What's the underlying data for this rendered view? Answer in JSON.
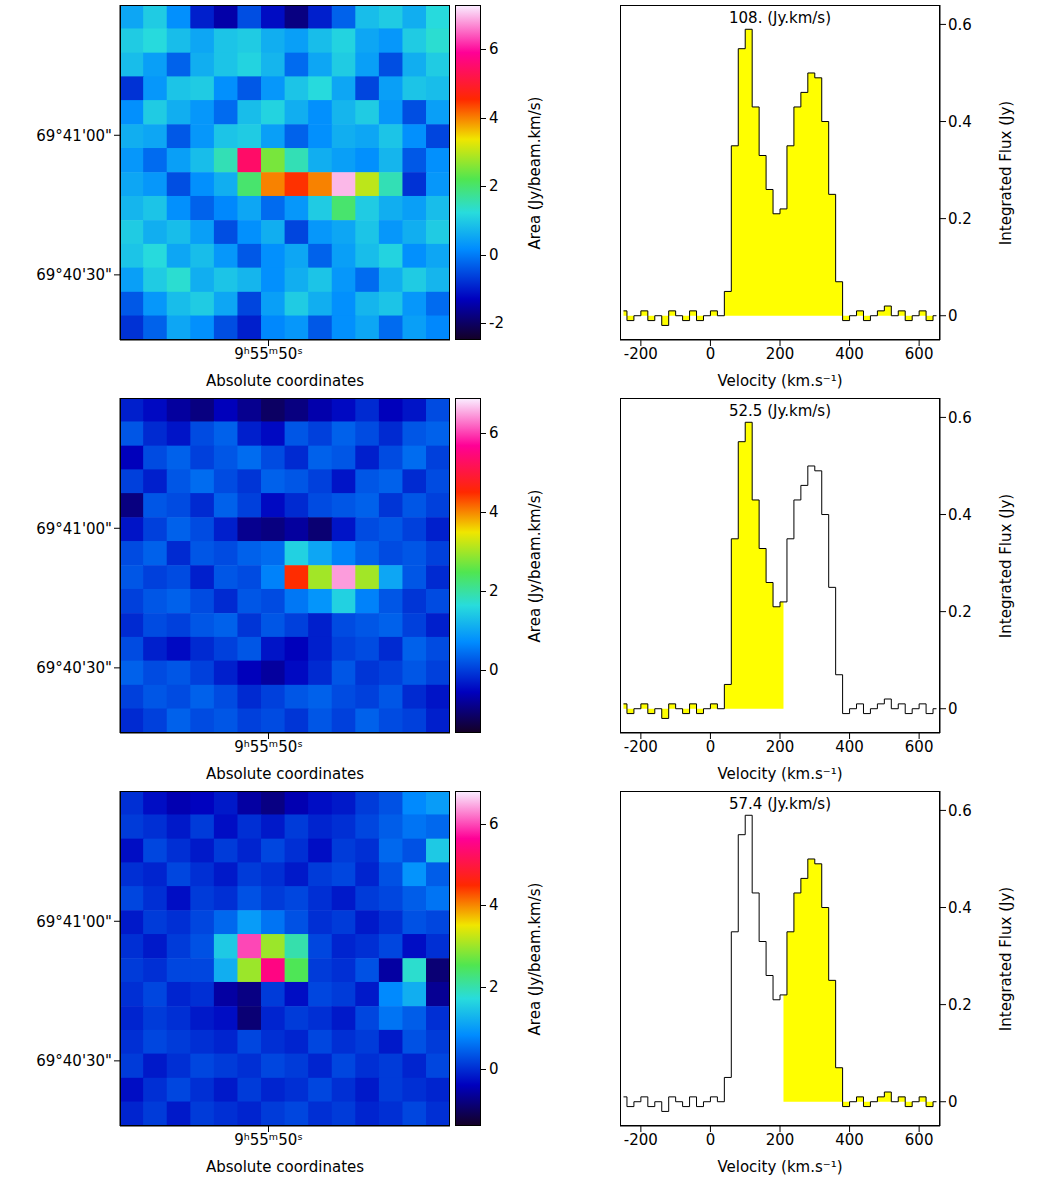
{
  "chart_data": [
    {
      "type": "heatmap",
      "xlabel": "Absolute coordinates",
      "xlim": [
        56.3,
        42.3
      ],
      "xticks": [
        {
          "value": 50,
          "label": "9ʰ55ᵐ50ˢ"
        }
      ],
      "ylim": [
        16,
        88
      ],
      "yticks": [
        {
          "value": 60,
          "label": "69°41'00\""
        },
        {
          "value": 30,
          "label": "69°40'30\""
        }
      ],
      "x": [
        55.8,
        54.8,
        53.8,
        52.8,
        51.8,
        50.8,
        49.8,
        48.8,
        47.8,
        46.8,
        45.8,
        44.8,
        43.8,
        42.8
      ],
      "y": [
        85.4,
        80.3,
        75.1,
        70.0,
        64.9,
        59.7,
        54.6,
        49.4,
        44.3,
        39.1,
        34.0,
        28.9,
        23.7,
        18.6
      ],
      "cells": [
        [
          0.5,
          1.0,
          0.2,
          -1.0,
          -1.5,
          -0.5,
          -1.2,
          -1.8,
          -1.0,
          -0.3,
          0.8,
          1.0,
          0.6,
          1.2
        ],
        [
          1.0,
          1.2,
          0.8,
          0.5,
          0.9,
          1.0,
          0.6,
          0.4,
          0.8,
          1.1,
          0.5,
          0.3,
          1.0,
          1.3
        ],
        [
          0.8,
          0.4,
          -0.3,
          0.6,
          0.9,
          1.1,
          0.7,
          -0.2,
          0.5,
          1.0,
          0.4,
          -0.5,
          0.6,
          1.0
        ],
        [
          -0.8,
          0.3,
          0.9,
          1.0,
          0.2,
          -0.4,
          0.3,
          0.9,
          1.2,
          0.5,
          -0.6,
          0.4,
          0.9,
          0.8
        ],
        [
          0.2,
          1.0,
          0.6,
          0.3,
          -0.2,
          0.8,
          1.1,
          0.6,
          0.2,
          0.7,
          1.0,
          0.3,
          -0.5,
          0.4
        ],
        [
          0.6,
          0.5,
          -0.4,
          0.3,
          0.9,
          1.0,
          0.4,
          -0.3,
          0.2,
          0.6,
          0.5,
          0.9,
          0.2,
          -0.6
        ],
        [
          0.3,
          -0.2,
          0.4,
          0.8,
          1.5,
          5.5,
          2.5,
          1.5,
          0.6,
          0.4,
          0.2,
          0.7,
          -0.4,
          0.2
        ],
        [
          0.5,
          0.3,
          -0.5,
          0.2,
          0.6,
          2.0,
          4.0,
          4.5,
          4.0,
          7.0,
          3.0,
          1.5,
          -0.8,
          0.3
        ],
        [
          0.7,
          0.9,
          0.2,
          -0.3,
          0.1,
          0.5,
          -0.2,
          0.3,
          1.0,
          2.0,
          1.0,
          0.6,
          0.4,
          0.8
        ],
        [
          1.0,
          0.6,
          0.8,
          0.4,
          -0.5,
          0.2,
          0.6,
          -0.6,
          0.3,
          0.5,
          0.9,
          0.3,
          0.6,
          1.0
        ],
        [
          0.9,
          1.2,
          0.5,
          0.8,
          0.3,
          -0.4,
          0.2,
          0.5,
          -0.3,
          0.4,
          0.8,
          1.1,
          0.2,
          0.5
        ],
        [
          0.4,
          1.0,
          1.3,
          0.6,
          0.9,
          0.7,
          0.2,
          0.6,
          0.9,
          0.3,
          -0.2,
          0.6,
          1.0,
          0.7
        ],
        [
          -0.4,
          0.3,
          0.8,
          1.0,
          0.5,
          -0.6,
          0.4,
          1.0,
          0.6,
          0.2,
          0.7,
          0.9,
          0.3,
          -0.2
        ],
        [
          -0.8,
          -0.3,
          0.5,
          0.2,
          -0.5,
          -1.0,
          0.1,
          0.3,
          -0.4,
          0.2,
          0.5,
          -0.2,
          0.4,
          0.1
        ]
      ],
      "colorbar": {
        "label": "Area (Jy/beam.km/s)",
        "range": [
          -2.5,
          7.3
        ],
        "ticks": [
          -2,
          0,
          2,
          4,
          6
        ]
      }
    },
    {
      "type": "area",
      "title": "108. (Jy.km/s)",
      "xlabel": "Velocity (km.s⁻¹)",
      "ylabel": "Integrated Flux (Jy)",
      "line_style": "step",
      "color": "#ffff00",
      "xlim": [
        -260,
        660
      ],
      "xticks": [
        -200,
        0,
        200,
        400,
        600
      ],
      "ylim": [
        -0.05,
        0.64
      ],
      "yticks": [
        0,
        0.2,
        0.4,
        0.6
      ],
      "x": [
        -250,
        -230,
        -210,
        -190,
        -170,
        -150,
        -130,
        -110,
        -90,
        -70,
        -50,
        -30,
        -10,
        10,
        30,
        50,
        70,
        90,
        110,
        130,
        150,
        170,
        190,
        210,
        230,
        250,
        270,
        290,
        310,
        330,
        350,
        370,
        390,
        410,
        430,
        450,
        470,
        490,
        510,
        530,
        550,
        570,
        590,
        610,
        630,
        650
      ],
      "values": [
        0.01,
        -0.01,
        0.0,
        0.01,
        -0.01,
        0.0,
        -0.02,
        0.01,
        0.0,
        -0.01,
        0.01,
        -0.01,
        0.0,
        0.01,
        0.0,
        0.05,
        0.35,
        0.55,
        0.59,
        0.43,
        0.33,
        0.26,
        0.21,
        0.22,
        0.35,
        0.43,
        0.46,
        0.5,
        0.49,
        0.4,
        0.25,
        0.07,
        -0.01,
        0.0,
        0.01,
        -0.01,
        0.0,
        0.01,
        0.02,
        0.0,
        0.01,
        -0.01,
        0.0,
        0.01,
        -0.01,
        0.0
      ],
      "integration_window": [
        -250,
        650
      ]
    },
    {
      "type": "heatmap",
      "xlabel": "Absolute coordinates",
      "xlim": [
        56.3,
        42.3
      ],
      "xticks": [
        {
          "value": 50,
          "label": "9ʰ55ᵐ50ˢ"
        }
      ],
      "ylim": [
        16,
        88
      ],
      "yticks": [
        {
          "value": 60,
          "label": "69°41'00\""
        },
        {
          "value": 30,
          "label": "69°40'30\""
        }
      ],
      "x": [
        55.8,
        54.8,
        53.8,
        52.8,
        51.8,
        50.8,
        49.8,
        48.8,
        47.8,
        46.8,
        45.8,
        44.8,
        43.8,
        42.8
      ],
      "y": [
        85.4,
        80.3,
        75.1,
        70.0,
        64.9,
        59.7,
        54.6,
        49.4,
        44.3,
        39.1,
        34.0,
        28.9,
        23.7,
        18.6
      ],
      "cells": [
        [
          -0.3,
          -0.5,
          -0.8,
          -1.0,
          -0.6,
          -0.9,
          -1.2,
          -1.0,
          -0.7,
          -0.5,
          -0.2,
          -0.6,
          -0.4,
          0.1
        ],
        [
          0.2,
          -0.2,
          -0.4,
          0.1,
          0.3,
          -0.3,
          -0.5,
          0.2,
          0.0,
          0.3,
          0.1,
          -0.2,
          0.2,
          0.3
        ],
        [
          -0.6,
          0.1,
          0.3,
          0.0,
          0.2,
          0.4,
          0.1,
          -0.2,
          0.3,
          0.2,
          -0.3,
          0.1,
          0.4,
          0.0
        ],
        [
          0.0,
          -0.3,
          0.2,
          0.4,
          0.1,
          -0.1,
          0.3,
          0.2,
          0.0,
          -0.4,
          0.2,
          0.3,
          -0.2,
          0.1
        ],
        [
          -1.0,
          0.2,
          0.1,
          -0.2,
          0.3,
          0.0,
          -0.5,
          -0.2,
          0.1,
          0.2,
          0.3,
          -0.1,
          0.2,
          0.0
        ],
        [
          -0.4,
          0.0,
          0.3,
          0.1,
          -0.3,
          -0.9,
          -1.0,
          -0.8,
          -1.1,
          -0.4,
          0.1,
          0.2,
          0.0,
          -0.3
        ],
        [
          0.1,
          0.3,
          -0.2,
          0.2,
          0.1,
          0.3,
          0.4,
          1.5,
          1.0,
          0.6,
          0.3,
          0.1,
          0.2,
          0.0
        ],
        [
          0.2,
          0.0,
          0.1,
          -0.3,
          0.2,
          0.1,
          0.6,
          4.5,
          3.0,
          6.5,
          3.0,
          1.0,
          0.2,
          -0.2
        ],
        [
          0.0,
          0.2,
          0.3,
          0.1,
          -0.2,
          0.2,
          0.1,
          0.5,
          0.8,
          1.5,
          0.6,
          0.2,
          -0.1,
          0.1
        ],
        [
          -0.2,
          0.1,
          0.0,
          0.2,
          0.3,
          -0.1,
          0.2,
          0.0,
          -0.3,
          0.1,
          0.2,
          0.3,
          0.0,
          -0.3
        ],
        [
          0.1,
          -0.3,
          -0.5,
          -0.2,
          0.0,
          0.2,
          -0.4,
          -0.6,
          -0.3,
          0.0,
          0.1,
          -0.2,
          0.3,
          0.1
        ],
        [
          0.3,
          0.1,
          0.2,
          0.0,
          -0.3,
          -0.6,
          -0.8,
          -0.5,
          -0.2,
          0.2,
          -0.1,
          0.0,
          0.2,
          0.0
        ],
        [
          0.0,
          0.2,
          0.1,
          0.3,
          0.1,
          -0.2,
          0.0,
          0.2,
          0.3,
          0.1,
          0.0,
          0.2,
          -0.2,
          -0.4
        ],
        [
          -0.2,
          0.0,
          0.3,
          0.1,
          0.2,
          0.0,
          0.1,
          -0.1,
          0.2,
          0.0,
          0.3,
          0.1,
          0.0,
          -0.3
        ]
      ],
      "colorbar": {
        "label": "Area (Jy/beam.km/s)",
        "range": [
          -1.6,
          6.9
        ],
        "ticks": [
          0,
          2,
          4,
          6
        ]
      }
    },
    {
      "type": "area",
      "title": "52.5 (Jy.km/s)",
      "xlabel": "Velocity (km.s⁻¹)",
      "ylabel": "Integrated Flux (Jy)",
      "line_style": "step",
      "color": "#ffff00",
      "xlim": [
        -260,
        660
      ],
      "xticks": [
        -200,
        0,
        200,
        400,
        600
      ],
      "ylim": [
        -0.05,
        0.64
      ],
      "yticks": [
        0,
        0.2,
        0.4,
        0.6
      ],
      "x": [
        -250,
        -230,
        -210,
        -190,
        -170,
        -150,
        -130,
        -110,
        -90,
        -70,
        -50,
        -30,
        -10,
        10,
        30,
        50,
        70,
        90,
        110,
        130,
        150,
        170,
        190,
        210,
        230,
        250,
        270,
        290,
        310,
        330,
        350,
        370,
        390,
        410,
        430,
        450,
        470,
        490,
        510,
        530,
        550,
        570,
        590,
        610,
        630,
        650
      ],
      "values": [
        0.01,
        -0.01,
        0.0,
        0.01,
        -0.01,
        0.0,
        -0.02,
        0.01,
        0.0,
        -0.01,
        0.01,
        -0.01,
        0.0,
        0.01,
        0.0,
        0.05,
        0.35,
        0.55,
        0.59,
        0.43,
        0.33,
        0.26,
        0.21,
        0.22,
        0.35,
        0.43,
        0.46,
        0.5,
        0.49,
        0.4,
        0.25,
        0.07,
        -0.01,
        0.0,
        0.01,
        -0.01,
        0.0,
        0.01,
        0.02,
        0.0,
        0.01,
        -0.01,
        0.0,
        0.01,
        -0.01,
        0.0
      ],
      "integration_window": [
        -250,
        210
      ]
    },
    {
      "type": "heatmap",
      "xlabel": "Absolute coordinates",
      "xlim": [
        56.3,
        42.3
      ],
      "xticks": [
        {
          "value": 50,
          "label": "9ʰ55ᵐ50ˢ"
        }
      ],
      "ylim": [
        16,
        88
      ],
      "yticks": [
        {
          "value": 60,
          "label": "69°41'00\""
        },
        {
          "value": 30,
          "label": "69°40'30\""
        }
      ],
      "x": [
        55.8,
        54.8,
        53.8,
        52.8,
        51.8,
        50.8,
        49.8,
        48.8,
        47.8,
        46.8,
        45.8,
        44.8,
        43.8,
        42.8
      ],
      "y": [
        85.4,
        80.3,
        75.1,
        70.0,
        64.9,
        59.7,
        54.6,
        49.4,
        44.3,
        39.1,
        34.0,
        28.9,
        23.7,
        18.6
      ],
      "cells": [
        [
          0.0,
          -0.3,
          -0.5,
          -0.4,
          -0.2,
          -0.6,
          -0.8,
          -0.5,
          -0.3,
          -0.2,
          0.1,
          0.3,
          0.8,
          1.0
        ],
        [
          0.1,
          0.0,
          -0.2,
          0.1,
          -0.3,
          0.0,
          -0.2,
          0.1,
          -0.1,
          0.0,
          0.2,
          0.4,
          0.6,
          0.5
        ],
        [
          -0.3,
          0.2,
          0.0,
          -0.2,
          0.1,
          -0.1,
          0.2,
          0.0,
          -0.3,
          0.1,
          0.0,
          0.5,
          0.3,
          1.5
        ],
        [
          0.0,
          -0.1,
          0.2,
          0.0,
          -0.2,
          0.1,
          0.0,
          -0.2,
          0.1,
          0.2,
          -0.1,
          0.3,
          0.9,
          0.4
        ],
        [
          0.2,
          0.0,
          -0.3,
          0.1,
          0.0,
          0.3,
          0.1,
          0.2,
          0.0,
          -0.2,
          0.1,
          0.2,
          0.4,
          0.6
        ],
        [
          -0.2,
          0.1,
          0.0,
          0.2,
          0.5,
          1.0,
          0.6,
          0.3,
          0.0,
          0.1,
          -0.2,
          0.0,
          0.3,
          0.2
        ],
        [
          0.0,
          -0.2,
          0.1,
          0.3,
          1.5,
          6.0,
          3.0,
          2.0,
          0.2,
          -0.1,
          0.0,
          0.2,
          -0.3,
          0.0
        ],
        [
          0.1,
          0.0,
          0.2,
          0.2,
          1.2,
          3.0,
          5.5,
          2.5,
          0.1,
          0.0,
          0.3,
          -0.6,
          1.8,
          -0.9
        ],
        [
          0.0,
          0.2,
          -0.1,
          0.0,
          -0.6,
          -0.8,
          0.1,
          -0.3,
          0.2,
          0.1,
          -0.2,
          0.8,
          1.2,
          -0.7
        ],
        [
          -0.1,
          0.1,
          0.0,
          -0.2,
          -0.3,
          -0.9,
          -0.1,
          0.1,
          0.0,
          -0.2,
          0.2,
          0.6,
          0.4,
          0.0
        ],
        [
          0.0,
          0.2,
          0.1,
          0.0,
          -0.1,
          0.2,
          0.0,
          -0.1,
          0.2,
          0.0,
          0.1,
          -0.2,
          0.3,
          0.1
        ],
        [
          0.1,
          -0.2,
          0.0,
          0.2,
          0.1,
          0.0,
          0.2,
          0.1,
          -0.1,
          0.2,
          0.0,
          0.1,
          -0.1,
          0.2
        ],
        [
          -0.3,
          0.0,
          0.2,
          0.0,
          -0.2,
          0.1,
          -0.1,
          0.0,
          0.2,
          0.0,
          -0.2,
          0.1,
          0.0,
          -0.1
        ],
        [
          -0.1,
          0.1,
          -0.2,
          0.1,
          0.0,
          -0.1,
          0.1,
          0.2,
          0.0,
          0.1,
          -0.1,
          0.0,
          0.2,
          0.0
        ]
      ],
      "colorbar": {
        "label": "Area (Jy/beam.km/s)",
        "range": [
          -1.4,
          6.8
        ],
        "ticks": [
          0,
          2,
          4,
          6
        ]
      }
    },
    {
      "type": "area",
      "title": "57.4 (Jy.km/s)",
      "xlabel": "Velocity (km.s⁻¹)",
      "ylabel": "Integrated Flux (Jy)",
      "line_style": "step",
      "color": "#ffff00",
      "xlim": [
        -260,
        660
      ],
      "xticks": [
        -200,
        0,
        200,
        400,
        600
      ],
      "ylim": [
        -0.05,
        0.64
      ],
      "yticks": [
        0,
        0.2,
        0.4,
        0.6
      ],
      "x": [
        -250,
        -230,
        -210,
        -190,
        -170,
        -150,
        -130,
        -110,
        -90,
        -70,
        -50,
        -30,
        -10,
        10,
        30,
        50,
        70,
        90,
        110,
        130,
        150,
        170,
        190,
        210,
        230,
        250,
        270,
        290,
        310,
        330,
        350,
        370,
        390,
        410,
        430,
        450,
        470,
        490,
        510,
        530,
        550,
        570,
        590,
        610,
        630,
        650
      ],
      "values": [
        0.01,
        -0.01,
        0.0,
        0.01,
        -0.01,
        0.0,
        -0.02,
        0.01,
        0.0,
        -0.01,
        0.01,
        -0.01,
        0.0,
        0.01,
        0.0,
        0.05,
        0.35,
        0.55,
        0.59,
        0.43,
        0.33,
        0.26,
        0.21,
        0.22,
        0.35,
        0.43,
        0.46,
        0.5,
        0.49,
        0.4,
        0.25,
        0.07,
        -0.01,
        0.0,
        0.01,
        -0.01,
        0.0,
        0.01,
        0.02,
        0.0,
        0.01,
        -0.01,
        0.0,
        0.01,
        -0.01,
        0.0
      ],
      "integration_window": [
        200,
        650
      ]
    }
  ]
}
